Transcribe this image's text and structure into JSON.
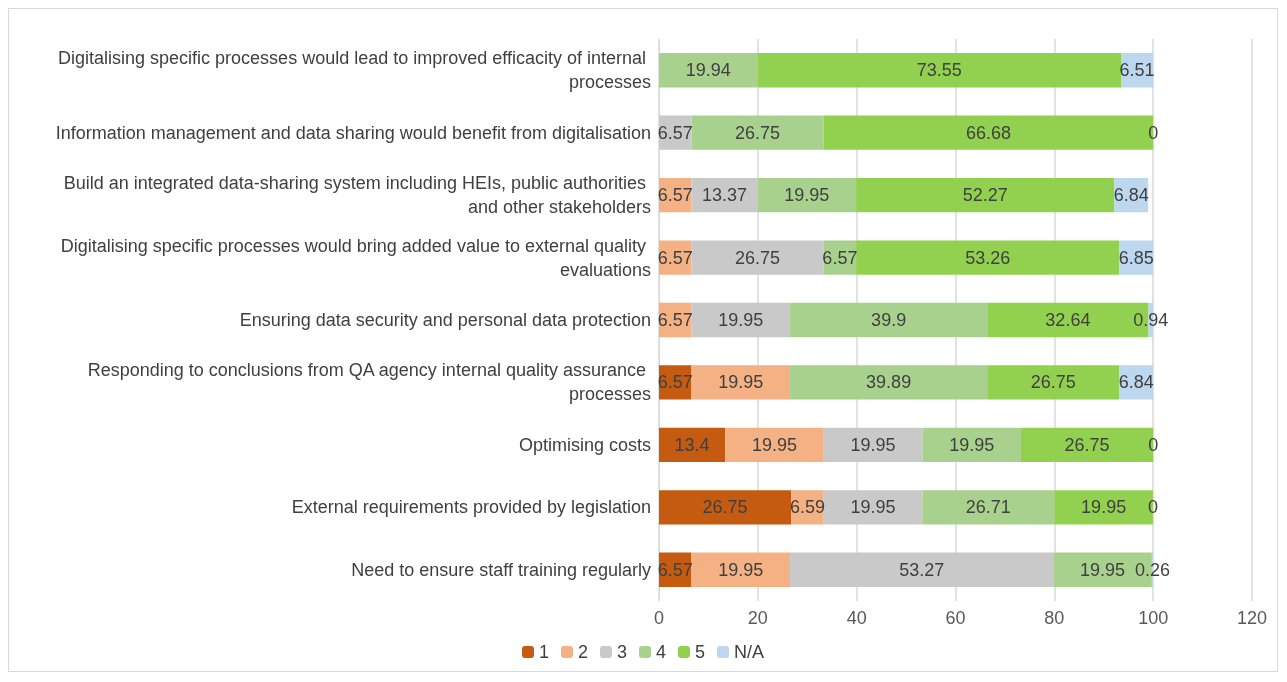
{
  "chart_data": {
    "type": "bar",
    "orientation": "horizontal",
    "stacked": true,
    "data_labels": true,
    "grid": "x",
    "legend": "bottom",
    "categories": [
      "Digitalising specific processes would lead to improved efficacity of internal processes",
      "Information management and data sharing would benefit from digitalisation",
      "Build an integrated data-sharing system including HEIs, public authorities and other stakeholders",
      "Digitalising specific processes would bring added value to external quality evaluations",
      "Ensuring data security and personal data protection",
      "Responding to conclusions from QA agency internal quality assurance processes",
      "Optimising costs",
      "External requirements provided by legislation",
      "Need to ensure staff training regularly"
    ],
    "xlim": [
      0,
      120
    ],
    "xticks": [
      0,
      20,
      40,
      60,
      80,
      100,
      120
    ],
    "series": [
      {
        "name": "1",
        "color": "#c55a11",
        "values": [
          null,
          null,
          null,
          null,
          null,
          6.57,
          13.4,
          26.75,
          6.57
        ]
      },
      {
        "name": "2",
        "color": "#f4b183",
        "values": [
          null,
          null,
          6.57,
          6.57,
          6.57,
          19.95,
          19.95,
          6.59,
          19.95
        ]
      },
      {
        "name": "3",
        "color": "#c9c9c9",
        "values": [
          null,
          6.57,
          13.37,
          26.75,
          19.95,
          null,
          19.95,
          19.95,
          53.27
        ]
      },
      {
        "name": "4",
        "color": "#a9d18e",
        "values": [
          19.94,
          26.75,
          19.95,
          6.57,
          39.9,
          39.89,
          19.95,
          26.71,
          19.95
        ]
      },
      {
        "name": "5",
        "color": "#92d050",
        "values": [
          73.55,
          66.68,
          52.27,
          53.26,
          32.64,
          26.75,
          26.75,
          19.95,
          null
        ]
      },
      {
        "name": "N/A",
        "color": "#bdd7ee",
        "values": [
          6.51,
          0,
          6.84,
          6.85,
          0.94,
          6.84,
          0,
          0,
          0.26
        ]
      }
    ]
  }
}
